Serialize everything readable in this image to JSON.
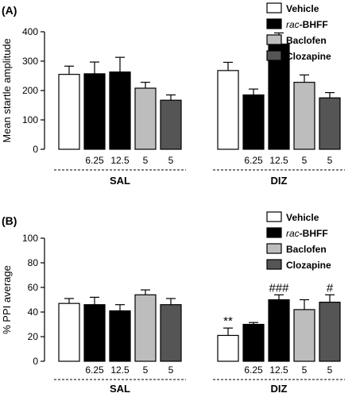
{
  "chart_data": [
    {
      "type": "bar",
      "panel_label": "(A)",
      "ylabel": "Mean startle amplitude",
      "ylim": [
        0,
        400
      ],
      "yticks": [
        0,
        100,
        200,
        300,
        400
      ],
      "groups": [
        {
          "name": "SAL",
          "dose_labels": [
            "",
            "6.25",
            "12.5",
            "5",
            "5"
          ]
        },
        {
          "name": "DIZ",
          "dose_labels": [
            "",
            "6.25",
            "12.5",
            "5",
            "5"
          ]
        }
      ],
      "legend": [
        "Vehicle",
        "rac-BHFF",
        "Baclofen",
        "Clozapine"
      ],
      "legend_italic_prefix": [
        "",
        "rac",
        "",
        ""
      ],
      "series": [
        {
          "name": "Vehicle",
          "values": [
            255,
            268
          ],
          "errors": [
            28,
            28
          ],
          "color": "#ffffff"
        },
        {
          "name": "rac-BHFF",
          "values": [
            257,
            185
          ],
          "errors": [
            40,
            20
          ],
          "color": "#000000"
        },
        {
          "name": "rac-BHFF",
          "values": [
            263,
            358
          ],
          "errors": [
            50,
            38
          ],
          "color": "#000000"
        },
        {
          "name": "Baclofen",
          "values": [
            208,
            228
          ],
          "errors": [
            20,
            25
          ],
          "color": "#bdbdbd"
        },
        {
          "name": "Clozapine",
          "values": [
            167,
            175
          ],
          "errors": [
            18,
            18
          ],
          "color": "#555555"
        }
      ],
      "annotations": []
    },
    {
      "type": "bar",
      "panel_label": "(B)",
      "ylabel": "% PPI average",
      "ylim": [
        0,
        100
      ],
      "yticks": [
        0,
        20,
        40,
        60,
        80,
        100
      ],
      "groups": [
        {
          "name": "SAL",
          "dose_labels": [
            "",
            "6.25",
            "12.5",
            "5",
            "5"
          ]
        },
        {
          "name": "DIZ",
          "dose_labels": [
            "",
            "6.25",
            "12.5",
            "5",
            "5"
          ]
        }
      ],
      "legend": [
        "Vehicle",
        "rac-BHFF",
        "Baclofen",
        "Clozapine"
      ],
      "legend_italic_prefix": [
        "",
        "rac",
        "",
        ""
      ],
      "series": [
        {
          "name": "Vehicle",
          "values": [
            47,
            21
          ],
          "errors": [
            4,
            6
          ],
          "color": "#ffffff"
        },
        {
          "name": "rac-BHFF",
          "values": [
            46,
            30
          ],
          "errors": [
            6,
            1.5
          ],
          "color": "#000000"
        },
        {
          "name": "rac-BHFF",
          "values": [
            41,
            50
          ],
          "errors": [
            5,
            4
          ],
          "color": "#000000"
        },
        {
          "name": "Baclofen",
          "values": [
            54,
            42
          ],
          "errors": [
            4,
            8
          ],
          "color": "#bdbdbd"
        },
        {
          "name": "Clozapine",
          "values": [
            46,
            48
          ],
          "errors": [
            5,
            6
          ],
          "color": "#555555"
        }
      ],
      "annotations": [
        {
          "group": 1,
          "bar": 0,
          "text": "**"
        },
        {
          "group": 1,
          "bar": 2,
          "text": "###"
        },
        {
          "group": 1,
          "bar": 4,
          "text": "#"
        }
      ]
    }
  ]
}
